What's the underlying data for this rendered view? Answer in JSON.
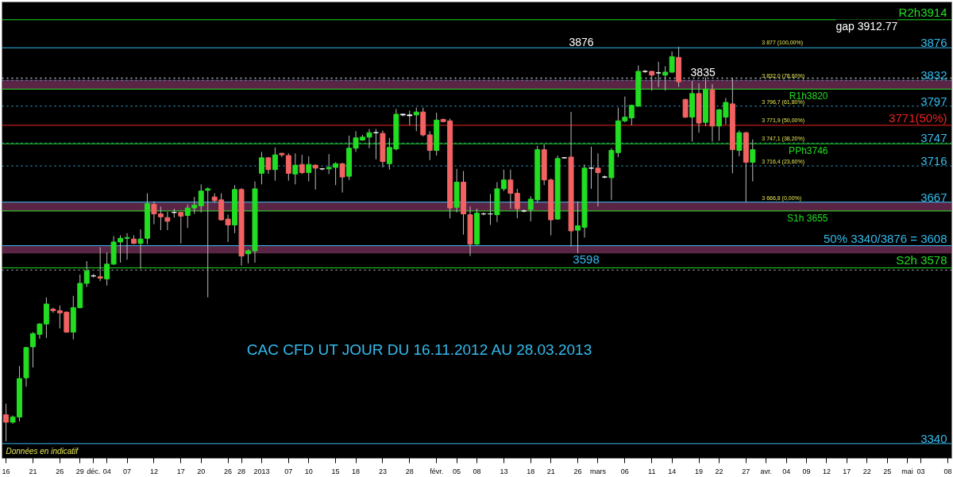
{
  "chart_data": {
    "type": "candlestick",
    "title": "CAC CFD UT JOUR DU 16.11.2012 AU 28.03.2013",
    "categories": [
      "16",
      null,
      null,
      null,
      "21",
      null,
      null,
      null,
      "26",
      null,
      null,
      "29",
      null,
      "déc.",
      null,
      "04",
      null,
      null,
      "07",
      null,
      null,
      null,
      "12",
      null,
      null,
      null,
      "17",
      null,
      null,
      "20",
      null,
      null,
      null,
      "26",
      null,
      "28",
      null,
      null,
      "2013",
      null,
      null,
      null,
      "07",
      null,
      null,
      "10",
      null,
      null,
      null,
      "15",
      null,
      null,
      "18",
      null,
      null,
      null,
      "23",
      null,
      null,
      null,
      "28",
      null,
      null,
      null,
      "févr.",
      null,
      null,
      "05",
      null,
      null,
      "08",
      null,
      null,
      null,
      "13",
      null,
      null,
      null,
      "18",
      null,
      null,
      "21",
      null,
      null,
      null,
      "26",
      null,
      null,
      "mars",
      null,
      null,
      null,
      "06",
      null,
      null,
      null,
      "11",
      null,
      null,
      "14",
      null,
      null,
      null,
      "19",
      null,
      null,
      "22",
      null,
      null,
      null,
      "27",
      null,
      null,
      "avr.",
      null,
      null,
      "04",
      null,
      null,
      "09",
      null,
      null,
      "12",
      null,
      null,
      "17",
      null,
      null,
      "22",
      null,
      null,
      "25",
      null,
      null,
      "mai",
      null,
      "03",
      null,
      null,
      null,
      "08"
    ],
    "ohlc": [
      [
        3379,
        3394,
        3343,
        3369
      ],
      [
        3369,
        3378,
        3367,
        3376
      ],
      [
        3376,
        3445,
        3370,
        3428
      ],
      [
        3429,
        3471,
        3417,
        3470
      ],
      [
        3471,
        3491,
        3443,
        3489
      ],
      [
        3488,
        3503,
        3482,
        3502
      ],
      [
        3502,
        3538,
        3483,
        3529
      ],
      [
        3522,
        3524,
        3517,
        3520
      ],
      [
        3520,
        3527,
        3496,
        3517
      ],
      [
        3518,
        3519,
        3490,
        3491
      ],
      [
        3491,
        3540,
        3481,
        3524
      ],
      [
        3524,
        3569,
        3523,
        3557
      ],
      [
        3557,
        3587,
        3552,
        3574
      ],
      [
        3567,
        3570,
        3565,
        3567
      ],
      [
        3566,
        3606,
        3560,
        3564
      ],
      [
        3563,
        3599,
        3554,
        3583
      ],
      [
        3583,
        3621,
        3582,
        3613
      ],
      [
        3613,
        3622,
        3585,
        3618
      ],
      [
        3618,
        3625,
        3589,
        3619
      ],
      [
        3617,
        3622,
        3610,
        3611
      ],
      [
        3611,
        3630,
        3577,
        3617
      ],
      [
        3618,
        3679,
        3610,
        3665
      ],
      [
        3664,
        3668,
        3637,
        3651
      ],
      [
        3651,
        3661,
        3629,
        3647
      ],
      [
        3646,
        3654,
        3629,
        3641
      ],
      [
        3653,
        3658,
        3646,
        3653
      ],
      [
        3653,
        3654,
        3611,
        3648
      ],
      [
        3649,
        3664,
        3632,
        3659
      ],
      [
        3659,
        3674,
        3651,
        3663
      ],
      [
        3662,
        3691,
        3653,
        3682
      ],
      [
        3683,
        3687,
        3538,
        3685
      ],
      [
        3674,
        3679,
        3666,
        3669
      ],
      [
        3670,
        3679,
        3642,
        3643
      ],
      [
        3644,
        3650,
        3613,
        3636
      ],
      [
        3636,
        3690,
        3625,
        3684
      ],
      [
        3684,
        3686,
        3581,
        3594
      ],
      [
        3597,
        3603,
        3584,
        3601
      ],
      [
        3601,
        3695,
        3585,
        3685
      ],
      [
        3706,
        3735,
        3691,
        3727
      ],
      [
        3727,
        3728,
        3705,
        3711
      ],
      [
        3711,
        3741,
        3696,
        3731
      ],
      [
        3733,
        3734,
        3728,
        3731
      ],
      [
        3730,
        3733,
        3696,
        3706
      ],
      [
        3705,
        3733,
        3691,
        3717
      ],
      [
        3718,
        3731,
        3705,
        3707
      ],
      [
        3707,
        3729,
        3695,
        3718
      ],
      [
        3717,
        3718,
        3684,
        3713
      ],
      [
        3712,
        3713,
        3710,
        3712
      ],
      [
        3712,
        3732,
        3705,
        3714
      ],
      [
        3714,
        3721,
        3690,
        3719
      ],
      [
        3719,
        3720,
        3680,
        3701
      ],
      [
        3702,
        3757,
        3697,
        3740
      ],
      [
        3740,
        3763,
        3735,
        3754
      ],
      [
        3751,
        3758,
        3750,
        3755
      ],
      [
        3755,
        3766,
        3740,
        3761
      ],
      [
        3761,
        3766,
        3725,
        3761
      ],
      [
        3760,
        3764,
        3714,
        3722
      ],
      [
        3719,
        3754,
        3711,
        3741
      ],
      [
        3739,
        3793,
        3737,
        3786
      ],
      [
        3786,
        3787,
        3783,
        3785
      ],
      [
        3785,
        3791,
        3771,
        3784
      ],
      [
        3785,
        3795,
        3763,
        3789
      ],
      [
        3789,
        3795,
        3756,
        3758
      ],
      [
        3758,
        3763,
        3724,
        3737
      ],
      [
        3737,
        3788,
        3730,
        3778
      ],
      [
        3779,
        3780,
        3775,
        3776
      ],
      [
        3777,
        3780,
        3645,
        3659
      ],
      [
        3660,
        3712,
        3653,
        3694
      ],
      [
        3694,
        3709,
        3623,
        3651
      ],
      [
        3650,
        3661,
        3594,
        3610
      ],
      [
        3610,
        3658,
        3609,
        3652
      ],
      [
        3651,
        3653,
        3649,
        3651
      ],
      [
        3651,
        3678,
        3636,
        3651
      ],
      [
        3650,
        3694,
        3640,
        3685
      ],
      [
        3685,
        3711,
        3682,
        3697
      ],
      [
        3697,
        3711,
        3658,
        3679
      ],
      [
        3679,
        3685,
        3645,
        3658
      ],
      [
        3655,
        3657,
        3653,
        3655
      ],
      [
        3657,
        3675,
        3641,
        3671
      ],
      [
        3670,
        3743,
        3666,
        3738
      ],
      [
        3738,
        3745,
        3690,
        3697
      ],
      [
        3697,
        3699,
        3622,
        3643
      ],
      [
        3644,
        3730,
        3643,
        3726
      ],
      [
        3727,
        3728,
        3726,
        3727
      ],
      [
        3728,
        3789,
        3607,
        3628
      ],
      [
        3629,
        3668,
        3598,
        3635
      ],
      [
        3633,
        3718,
        3619,
        3713
      ],
      [
        3713,
        3742,
        3685,
        3713
      ],
      [
        3713,
        3733,
        3661,
        3707
      ],
      [
        3701,
        3703,
        3699,
        3701
      ],
      [
        3700,
        3740,
        3670,
        3737
      ],
      [
        3734,
        3795,
        3728,
        3777
      ],
      [
        3777,
        3810,
        3775,
        3782
      ],
      [
        3781,
        3799,
        3771,
        3798
      ],
      [
        3797,
        3852,
        3796,
        3844
      ],
      [
        3844,
        3846,
        3842,
        3844
      ],
      [
        3844,
        3845,
        3818,
        3839
      ],
      [
        3842,
        3857,
        3823,
        3842
      ],
      [
        3839,
        3851,
        3818,
        3843
      ],
      [
        3843,
        3871,
        3842,
        3864
      ],
      [
        3863,
        3877,
        3823,
        3830
      ],
      [
        3806,
        3807,
        3781,
        3782
      ],
      [
        3782,
        3831,
        3749,
        3814
      ],
      [
        3814,
        3828,
        3761,
        3774
      ],
      [
        3775,
        3836,
        3770,
        3820
      ],
      [
        3819,
        3827,
        3749,
        3770
      ],
      [
        3770,
        3793,
        3750,
        3792
      ],
      [
        3782,
        3808,
        3772,
        3802
      ],
      [
        3800,
        3835,
        3706,
        3738
      ],
      [
        3737,
        3764,
        3729,
        3761
      ],
      [
        3761,
        3762,
        3667,
        3721
      ],
      [
        3721,
        3752,
        3695,
        3738
      ],
      null,
      null,
      null,
      null,
      null,
      null,
      null,
      null,
      null,
      null,
      null,
      null,
      null,
      null,
      null,
      null,
      null,
      null,
      null,
      null,
      null,
      null,
      null,
      null,
      null,
      null,
      null,
      null,
      null
    ],
    "colors": [
      "#f26262",
      "#22dd22",
      "#22dd22",
      "#22dd22",
      "#22dd22",
      "#22dd22",
      "#22dd22",
      "#f26262",
      "#f26262",
      "#f26262",
      "#22dd22",
      "#22dd22",
      "#22dd22",
      "#ffffff",
      "#f26262",
      "#22dd22",
      "#22dd22",
      "#22dd22",
      "#22dd22",
      "#f26262",
      "#22dd22",
      "#22dd22",
      "#f26262",
      "#f26262",
      "#f26262",
      "#ffffff",
      "#f26262",
      "#22dd22",
      "#22dd22",
      "#22dd22",
      "#22dd22",
      "#f26262",
      "#f26262",
      "#f26262",
      "#22dd22",
      "#f26262",
      "#22dd22",
      "#22dd22",
      "#22dd22",
      "#f26262",
      "#22dd22",
      "#f26262",
      "#f26262",
      "#22dd22",
      "#f26262",
      "#22dd22",
      "#f26262",
      "#ffffff",
      "#22dd22",
      "#22dd22",
      "#f26262",
      "#22dd22",
      "#22dd22",
      "#22dd22",
      "#22dd22",
      "#ffffff",
      "#f26262",
      "#22dd22",
      "#22dd22",
      "#ffffff",
      "#ffffff",
      "#22dd22",
      "#f26262",
      "#f26262",
      "#22dd22",
      "#f26262",
      "#f26262",
      "#22dd22",
      "#f26262",
      "#f26262",
      "#22dd22",
      "#ffffff",
      "#ffffff",
      "#22dd22",
      "#22dd22",
      "#f26262",
      "#f26262",
      "#ffffff",
      "#22dd22",
      "#22dd22",
      "#f26262",
      "#f26262",
      "#22dd22",
      "#ffffff",
      "#f26262",
      "#22dd22",
      "#22dd22",
      "#ffffff",
      "#f26262",
      "#ffffff",
      "#22dd22",
      "#22dd22",
      "#22dd22",
      "#22dd22",
      "#22dd22",
      "#ffffff",
      "#f26262",
      "#ffffff",
      "#22dd22",
      "#22dd22",
      "#f26262",
      "#f26262",
      "#22dd22",
      "#f26262",
      "#22dd22",
      "#f26262",
      "#22dd22",
      "#22dd22",
      "#f26262",
      "#22dd22",
      "#f26262",
      "#22dd22",
      null,
      null,
      null,
      null,
      null,
      null,
      null,
      null,
      null,
      null,
      null,
      null,
      null,
      null,
      null,
      null,
      null,
      null,
      null,
      null,
      null,
      null,
      null,
      null,
      null,
      null,
      null,
      null,
      null
    ],
    "ylim": [
      3320,
      3938
    ],
    "tick_labels": "x",
    "grid": false,
    "ref_lines": [
      {
        "axis": "y",
        "value": 3876,
        "label": "3876",
        "color": "#33bbee",
        "line_style": "solid"
      },
      {
        "axis": "y",
        "value": 3835,
        "color": "#ffffff",
        "line_style": "dotted"
      },
      {
        "axis": "y",
        "value": 3832,
        "label": "3832",
        "color": "#33bbee",
        "line_style": "dotted"
      },
      {
        "axis": "y",
        "value": 3797,
        "label": "3797",
        "color": "#33bbee",
        "line_style": "dotted"
      },
      {
        "axis": "y",
        "value": 3771,
        "label": "3771(50%)",
        "color": "#ee2222",
        "line_style": "solid"
      },
      {
        "axis": "y",
        "value": 3747,
        "label": "3747",
        "color": "#33bbee",
        "line_style": "dotted"
      },
      {
        "axis": "y",
        "value": 3716,
        "label": "3716",
        "color": "#33bbee",
        "line_style": "dotted"
      },
      {
        "axis": "y",
        "value": 3667,
        "label": "3667",
        "color": "#33bbee",
        "line_style": "solid"
      },
      {
        "axis": "y",
        "value": 3608,
        "label": "50% 3340/3876 = 3608",
        "color": "#33bbee",
        "line_style": "solid"
      },
      {
        "axis": "y",
        "value": 3575,
        "color": "#cccccc",
        "line_style": "dotted"
      },
      {
        "axis": "y",
        "value": 3340,
        "label": "3340",
        "color": "#33bbee",
        "line_style": "solid"
      },
      {
        "axis": "y",
        "value": 3914,
        "label": "R2h3914",
        "color": "#22dd22",
        "line_style": "solid"
      },
      {
        "axis": "y",
        "value": 3820,
        "label": "R1h3820",
        "color": "#22dd22",
        "line_style": "solid"
      },
      {
        "axis": "y",
        "value": 3746,
        "label": "PPh3746",
        "color": "#22dd22",
        "line_style": "solid"
      },
      {
        "axis": "y",
        "value": 3655,
        "label": "S1h 3655",
        "color": "#22dd22",
        "line_style": "solid"
      },
      {
        "axis": "y",
        "value": 3578,
        "label": "S2h 3578",
        "color": "#22dd22",
        "line_style": "solid"
      }
    ],
    "bands": [
      {
        "axis": "y",
        "from": 3820,
        "to": 3832,
        "color": "#6a2c50"
      },
      {
        "axis": "y",
        "from": 3655,
        "to": 3667,
        "color": "#6a2c50"
      },
      {
        "axis": "y",
        "from": 3598,
        "to": 3608,
        "label": "3598",
        "color": "#6a2c50"
      }
    ],
    "annotations": [
      {
        "text": "3 877 (100,00%)",
        "y": 3877
      },
      {
        "text": "3 832,0 (78,60%)",
        "y": 3832
      },
      {
        "text": "3 796,7 (61,80%)",
        "y": 3796.7
      },
      {
        "text": "3 771,9 (50,00%)",
        "y": 3771.9
      },
      {
        "text": "3 747,1 (38,20%)",
        "y": 3747.1
      },
      {
        "text": "3 716,4 (23,60%)",
        "y": 3716.4
      },
      {
        "text": "3 666,8 (0,00%)",
        "y": 3666.8
      },
      {
        "text": "3835",
        "y": 3835
      },
      {
        "text": "3876",
        "y": 3876
      },
      "gap 3912.77",
      "Données en indicatif"
    ]
  }
}
